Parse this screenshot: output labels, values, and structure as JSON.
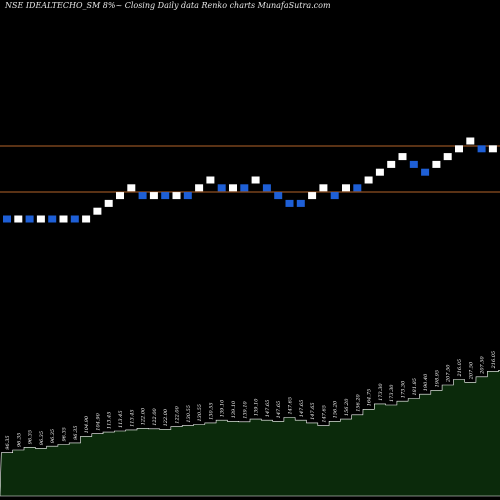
{
  "title": "NSE IDEALTECHO_SM 8%~  Closing Daily data  Renko  charts MunafaSutra.com",
  "colors": {
    "background": "#000000",
    "up_brick": "#ffffff",
    "down_brick": "#1e5fd6",
    "level_line": "#b5642a",
    "volume_fill": "#0b2a0b",
    "volume_stroke": "#ffffff",
    "label_text": "#ffffff"
  },
  "chart_data": {
    "type": "renko",
    "resistance_levels": [
      "upper",
      "lower"
    ],
    "bricks": [
      {
        "d": "down"
      },
      {
        "d": "up"
      },
      {
        "d": "down"
      },
      {
        "d": "up"
      },
      {
        "d": "down"
      },
      {
        "d": "up"
      },
      {
        "d": "down"
      },
      {
        "d": "up"
      },
      {
        "d": "up"
      },
      {
        "d": "up"
      },
      {
        "d": "up"
      },
      {
        "d": "up"
      },
      {
        "d": "down"
      },
      {
        "d": "up"
      },
      {
        "d": "down"
      },
      {
        "d": "up"
      },
      {
        "d": "down"
      },
      {
        "d": "up"
      },
      {
        "d": "up"
      },
      {
        "d": "down"
      },
      {
        "d": "up"
      },
      {
        "d": "down"
      },
      {
        "d": "up"
      },
      {
        "d": "down"
      },
      {
        "d": "down"
      },
      {
        "d": "down"
      },
      {
        "d": "down"
      },
      {
        "d": "up"
      },
      {
        "d": "up"
      },
      {
        "d": "down"
      },
      {
        "d": "up"
      },
      {
        "d": "down"
      },
      {
        "d": "up"
      },
      {
        "d": "up"
      },
      {
        "d": "up"
      },
      {
        "d": "up"
      },
      {
        "d": "down"
      },
      {
        "d": "down"
      },
      {
        "d": "up"
      },
      {
        "d": "up"
      },
      {
        "d": "up"
      },
      {
        "d": "up"
      },
      {
        "d": "down"
      },
      {
        "d": "up"
      },
      {
        "d": "down"
      },
      {
        "d": "down"
      }
    ],
    "brick_levels": [
      0,
      0,
      0,
      0,
      0,
      0,
      0,
      0,
      1,
      2,
      3,
      4,
      3,
      3,
      3,
      3,
      3,
      4,
      5,
      4,
      4,
      4,
      5,
      4,
      3,
      2,
      2,
      3,
      4,
      3,
      4,
      4,
      5,
      6,
      7,
      8,
      7,
      6,
      7,
      8,
      9,
      10,
      9,
      9,
      9,
      8
    ],
    "volume": {
      "values": [
        80,
        85,
        90,
        88,
        92,
        95,
        98,
        110,
        115,
        118,
        120,
        122,
        125,
        124,
        123,
        128,
        130,
        132,
        135,
        140,
        138,
        137,
        142,
        140,
        138,
        145,
        140,
        135,
        130,
        138,
        142,
        150,
        160,
        170,
        168,
        175,
        180,
        188,
        195,
        205,
        215,
        210,
        220,
        230,
        232,
        210
      ],
      "labels": [
        "96.35",
        "96.35",
        "96.35",
        "96.35",
        "96.35",
        "96.35",
        "96.35",
        "104.90",
        "104.90",
        "113.45",
        "113.45",
        "113.45",
        "122.00",
        "122.00",
        "122.00",
        "122.00",
        "130.55",
        "130.55",
        "130.55",
        "139.10",
        "139.10",
        "139.10",
        "139.10",
        "147.65",
        "147.65",
        "147.65",
        "147.65",
        "147.65",
        "147.65",
        "156.20",
        "156.20",
        "156.20",
        "164.75",
        "173.30",
        "173.30",
        "173.30",
        "181.85",
        "190.40",
        "198.95",
        "207.50",
        "216.05",
        "207.50",
        "207.50",
        "216.05",
        "224.60",
        "216.05"
      ]
    }
  }
}
